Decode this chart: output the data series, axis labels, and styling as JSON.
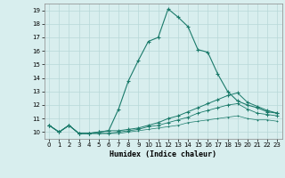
{
  "xlabel": "Humidex (Indice chaleur)",
  "xlim": [
    -0.5,
    23.5
  ],
  "ylim": [
    9.5,
    19.5
  ],
  "xticks": [
    0,
    1,
    2,
    3,
    4,
    5,
    6,
    7,
    8,
    9,
    10,
    11,
    12,
    13,
    14,
    15,
    16,
    17,
    18,
    19,
    20,
    21,
    22,
    23
  ],
  "yticks": [
    10,
    11,
    12,
    13,
    14,
    15,
    16,
    17,
    18,
    19
  ],
  "bg_color": "#d8eeee",
  "grid_color": "#b8d8d8",
  "line_color": "#1a7a6a",
  "line1_x": [
    0,
    1,
    2,
    3,
    4,
    5,
    6,
    7,
    8,
    9,
    10,
    11,
    12,
    13,
    14,
    15,
    16,
    17,
    18,
    19,
    20,
    21,
    22,
    23
  ],
  "line1_y": [
    10.5,
    10.0,
    10.5,
    9.9,
    9.9,
    10.0,
    10.1,
    11.7,
    13.8,
    15.3,
    16.7,
    17.0,
    19.1,
    18.5,
    17.8,
    16.1,
    15.9,
    14.3,
    13.0,
    12.3,
    12.0,
    11.8,
    11.5,
    11.4
  ],
  "line2_x": [
    0,
    1,
    2,
    3,
    4,
    5,
    6,
    7,
    8,
    9,
    10,
    11,
    12,
    13,
    14,
    15,
    16,
    17,
    18,
    19,
    20,
    21,
    22,
    23
  ],
  "line2_y": [
    10.5,
    10.0,
    10.5,
    9.9,
    9.9,
    10.0,
    10.1,
    10.1,
    10.2,
    10.3,
    10.5,
    10.7,
    11.0,
    11.2,
    11.5,
    11.8,
    12.1,
    12.4,
    12.7,
    12.9,
    12.2,
    11.9,
    11.6,
    11.4
  ],
  "line3_x": [
    0,
    1,
    2,
    3,
    4,
    5,
    6,
    7,
    8,
    9,
    10,
    11,
    12,
    13,
    14,
    15,
    16,
    17,
    18,
    19,
    20,
    21,
    22,
    23
  ],
  "line3_y": [
    10.5,
    10.0,
    10.5,
    9.9,
    9.9,
    9.9,
    9.9,
    10.0,
    10.1,
    10.2,
    10.4,
    10.5,
    10.7,
    10.9,
    11.1,
    11.4,
    11.6,
    11.8,
    12.0,
    12.1,
    11.7,
    11.4,
    11.3,
    11.2
  ],
  "line4_x": [
    0,
    1,
    2,
    3,
    4,
    5,
    6,
    7,
    8,
    9,
    10,
    11,
    12,
    13,
    14,
    15,
    16,
    17,
    18,
    19,
    20,
    21,
    22,
    23
  ],
  "line4_y": [
    10.5,
    10.0,
    10.5,
    9.9,
    9.9,
    9.9,
    9.9,
    9.9,
    10.0,
    10.1,
    10.2,
    10.3,
    10.4,
    10.5,
    10.7,
    10.8,
    10.9,
    11.0,
    11.1,
    11.2,
    11.0,
    10.9,
    10.9,
    10.8
  ]
}
